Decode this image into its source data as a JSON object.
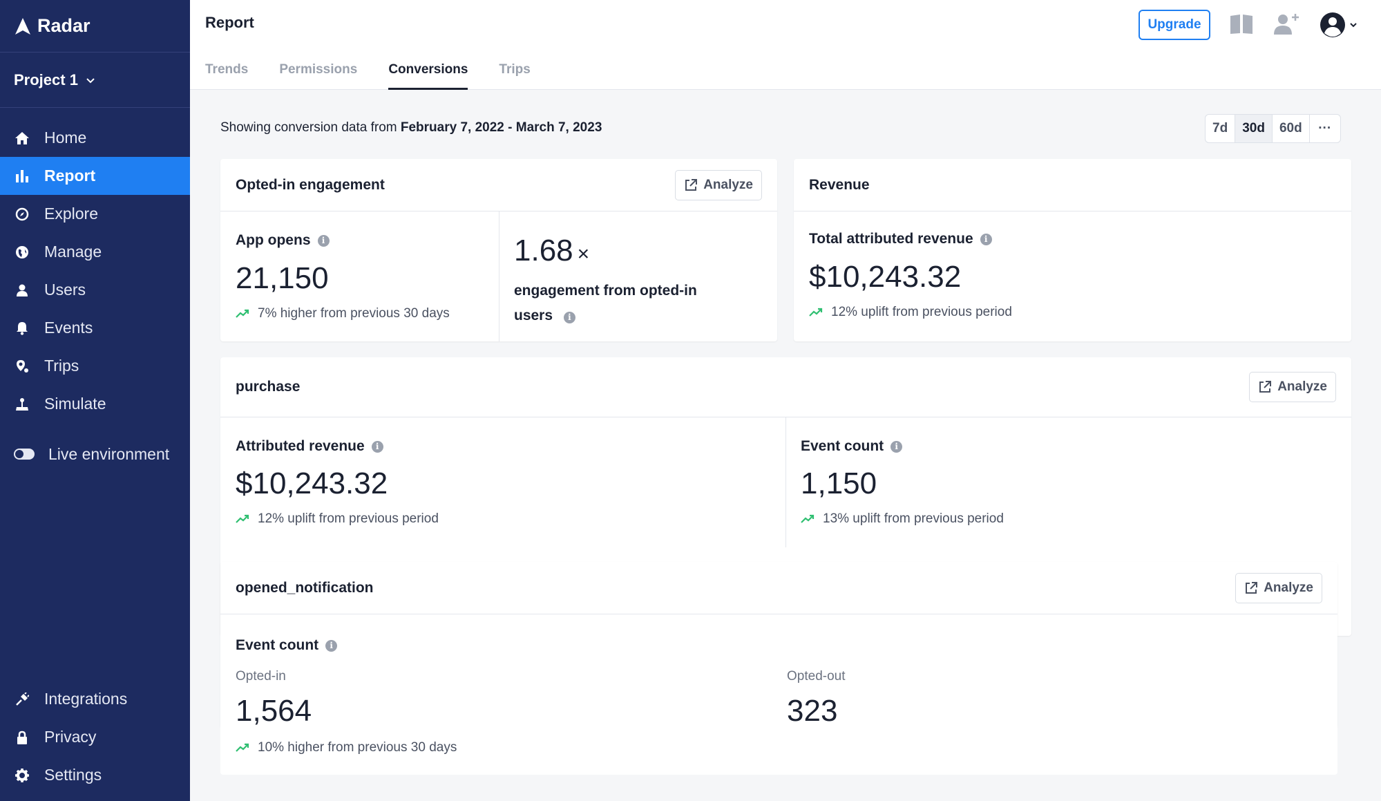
{
  "brand": {
    "name": "Radar"
  },
  "project": {
    "name": "Project 1"
  },
  "nav": {
    "home": "Home",
    "report": "Report",
    "explore": "Explore",
    "manage": "Manage",
    "users": "Users",
    "events": "Events",
    "trips": "Trips",
    "simulate": "Simulate",
    "live_env": "Live environment",
    "integrations": "Integrations",
    "privacy": "Privacy",
    "settings": "Settings"
  },
  "header": {
    "title": "Report",
    "upgrade": "Upgrade",
    "tabs": [
      "Trends",
      "Permissions",
      "Conversions",
      "Trips"
    ],
    "active_tab": "Conversions"
  },
  "range": {
    "prefix": "Showing conversion data from",
    "start": "February 7, 2022",
    "sep": "-",
    "end": "March 7, 2023",
    "buttons": [
      "7d",
      "30d",
      "60d",
      "···"
    ],
    "selected": "30d"
  },
  "opted_card": {
    "title": "Opted-in engagement",
    "analyze": "Analyze",
    "app_opens_label": "App opens",
    "app_opens_value": "21,150",
    "app_opens_delta": "7% higher from previous 30 days",
    "multiplier_value": "1.68",
    "multiplier_symbol": "×",
    "multiplier_label": "engagement from opted-in users"
  },
  "revenue_card": {
    "title": "Revenue",
    "label": "Total attributed revenue",
    "value": "$10,243.32",
    "delta": "12% uplift from previous period"
  },
  "purchase_card": {
    "title": "purchase",
    "analyze": "Analyze",
    "rev_label": "Attributed revenue",
    "rev_value": "$10,243.32",
    "rev_delta": "12% uplift from previous period",
    "count_label": "Event count",
    "count_value": "1,150",
    "count_delta": "13% uplift from previous period"
  },
  "notif_card": {
    "title": "opened_notification",
    "analyze": "Analyze",
    "label": "Event count",
    "opted_in_label": "Opted-in",
    "opted_in_value": "1,564",
    "opted_in_delta": "10% higher from previous 30 days",
    "opted_out_label": "Opted-out",
    "opted_out_value": "323"
  },
  "colors": {
    "sidebar": "#1d2b60",
    "accent": "#1f7ff2",
    "up": "#2fbf71"
  }
}
